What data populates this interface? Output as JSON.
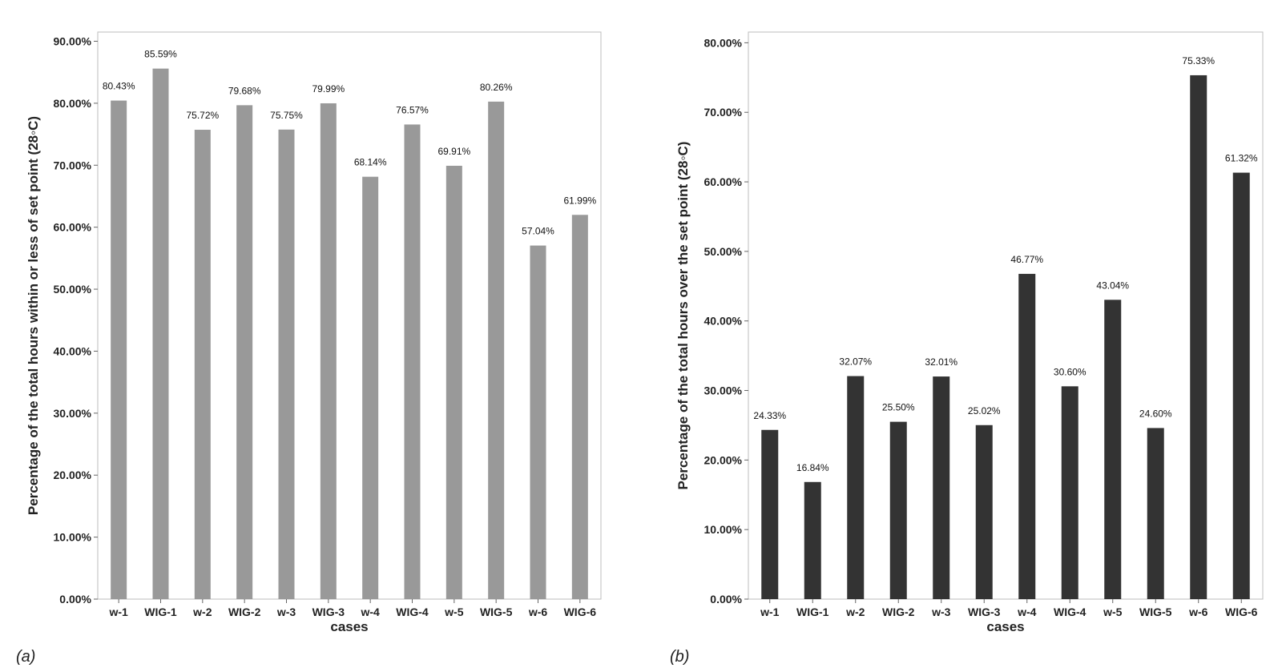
{
  "chart_data": [
    {
      "type": "bar",
      "panel_label": "(a)",
      "categories": [
        "w-1",
        "WIG-1",
        "w-2",
        "WIG-2",
        "w-3",
        "WIG-3",
        "w-4",
        "WIG-4",
        "w-5",
        "WIG-5",
        "w-6",
        "WIG-6"
      ],
      "values": [
        80.43,
        85.59,
        75.72,
        79.68,
        75.75,
        79.99,
        68.14,
        76.57,
        69.91,
        80.26,
        57.04,
        61.99
      ],
      "data_labels": [
        "80.43%",
        "85.59%",
        "75.72%",
        "79.68%",
        "75.75%",
        "79.99%",
        "68.14%",
        "76.57%",
        "69.91%",
        "80.26%",
        "57.04%",
        "61.99%"
      ],
      "yticks": [
        0,
        10,
        20,
        30,
        40,
        50,
        60,
        70,
        80,
        90
      ],
      "ytick_labels": [
        "0.00%",
        "10.00%",
        "20.00%",
        "30.00%",
        "40.00%",
        "50.00%",
        "60.00%",
        "70.00%",
        "80.00%",
        "90.00%"
      ],
      "ylim": [
        0,
        90
      ],
      "xlabel": "cases",
      "ylabel": "Percentage of the total hours within or less of set point (28◦C)",
      "bar_color": "#999999",
      "grid": false
    },
    {
      "type": "bar",
      "panel_label": "(b)",
      "categories": [
        "w-1",
        "WIG-1",
        "w-2",
        "WIG-2",
        "w-3",
        "WIG-3",
        "w-4",
        "WIG-4",
        "w-5",
        "WIG-5",
        "w-6",
        "WIG-6"
      ],
      "values": [
        24.33,
        16.84,
        32.07,
        25.5,
        32.01,
        25.02,
        46.77,
        30.6,
        43.04,
        24.6,
        75.33,
        61.32
      ],
      "data_labels": [
        "24.33%",
        "16.84%",
        "32.07%",
        "25.50%",
        "32.01%",
        "25.02%",
        "46.77%",
        "30.60%",
        "43.04%",
        "24.60%",
        "75.33%",
        "61.32%"
      ],
      "yticks": [
        0,
        10,
        20,
        30,
        40,
        50,
        60,
        70,
        80
      ],
      "ytick_labels": [
        "0.00%",
        "10.00%",
        "20.00%",
        "30.00%",
        "40.00%",
        "50.00%",
        "60.00%",
        "70.00%",
        "80.00%"
      ],
      "ylim": [
        0,
        80
      ],
      "xlabel": "cases",
      "ylabel": "Percentage of the total hours over the set point (28◦C)",
      "bar_color": "#333333",
      "grid": false
    }
  ]
}
